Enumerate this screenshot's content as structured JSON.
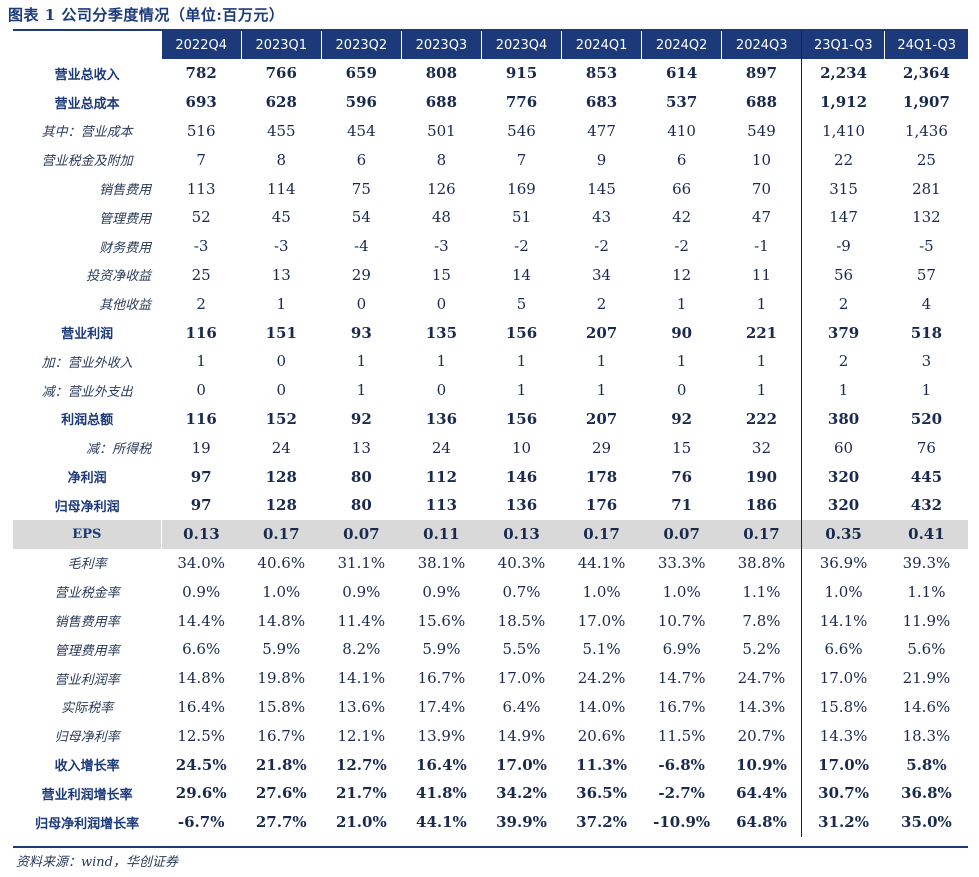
{
  "title": "图表 1    公司分季度情况（单位:百万元）",
  "header": [
    "2022Q4",
    "2023Q1",
    "2023Q2",
    "2023Q3",
    "2023Q4",
    "2024Q1",
    "2024Q2",
    "2024Q3",
    "23Q1-Q3",
    "24Q1-Q3"
  ],
  "rows": [
    {
      "label": "营业总收入",
      "style": "bold",
      "indent": "l1",
      "values": [
        "782",
        "766",
        "659",
        "808",
        "915",
        "853",
        "614",
        "897",
        "2,234",
        "2,364"
      ]
    },
    {
      "label": "营业总成本",
      "style": "bold",
      "indent": "l1",
      "values": [
        "693",
        "628",
        "596",
        "688",
        "776",
        "683",
        "537",
        "688",
        "1,912",
        "1,907"
      ]
    },
    {
      "label": "其中：营业成本",
      "style": "normal",
      "indent": "l1",
      "values": [
        "516",
        "455",
        "454",
        "501",
        "546",
        "477",
        "410",
        "549",
        "1,410",
        "1,436"
      ]
    },
    {
      "label": "营业税金及附加",
      "style": "normal",
      "indent": "l1",
      "values": [
        "7",
        "8",
        "6",
        "8",
        "7",
        "9",
        "6",
        "10",
        "22",
        "25"
      ]
    },
    {
      "label": "销售费用",
      "style": "normal",
      "indent": "l2",
      "values": [
        "113",
        "114",
        "75",
        "126",
        "169",
        "145",
        "66",
        "70",
        "315",
        "281"
      ]
    },
    {
      "label": "管理费用",
      "style": "normal",
      "indent": "l2",
      "values": [
        "52",
        "45",
        "54",
        "48",
        "51",
        "43",
        "42",
        "47",
        "147",
        "132"
      ]
    },
    {
      "label": "财务费用",
      "style": "normal",
      "indent": "l2",
      "values": [
        "-3",
        "-3",
        "-4",
        "-3",
        "-2",
        "-2",
        "-2",
        "-1",
        "-9",
        "-5"
      ]
    },
    {
      "label": "投资净收益",
      "style": "normal",
      "indent": "l2",
      "values": [
        "25",
        "13",
        "29",
        "15",
        "14",
        "34",
        "12",
        "11",
        "56",
        "57"
      ]
    },
    {
      "label": "其他收益",
      "style": "normal",
      "indent": "l2",
      "values": [
        "2",
        "1",
        "0",
        "0",
        "5",
        "2",
        "1",
        "1",
        "2",
        "4"
      ]
    },
    {
      "label": "营业利润",
      "style": "bold",
      "indent": "l1",
      "values": [
        "116",
        "151",
        "93",
        "135",
        "156",
        "207",
        "90",
        "221",
        "379",
        "518"
      ]
    },
    {
      "label": "加：营业外收入",
      "style": "normal",
      "indent": "l1",
      "values": [
        "1",
        "0",
        "1",
        "1",
        "1",
        "1",
        "1",
        "1",
        "2",
        "3"
      ]
    },
    {
      "label": "减：营业外支出",
      "style": "normal",
      "indent": "l1",
      "values": [
        "0",
        "0",
        "1",
        "0",
        "1",
        "1",
        "0",
        "1",
        "1",
        "1"
      ]
    },
    {
      "label": "利润总额",
      "style": "bold",
      "indent": "l1",
      "values": [
        "116",
        "152",
        "92",
        "136",
        "156",
        "207",
        "92",
        "222",
        "380",
        "520"
      ]
    },
    {
      "label": "减：所得税",
      "style": "normal",
      "indent": "l2",
      "values": [
        "19",
        "24",
        "13",
        "24",
        "10",
        "29",
        "15",
        "32",
        "60",
        "76"
      ]
    },
    {
      "label": "净利润",
      "style": "bold",
      "indent": "l1",
      "values": [
        "97",
        "128",
        "80",
        "112",
        "146",
        "178",
        "76",
        "190",
        "320",
        "445"
      ]
    },
    {
      "label": "归母净利润",
      "style": "bold",
      "indent": "l1",
      "values": [
        "97",
        "128",
        "80",
        "113",
        "136",
        "176",
        "71",
        "186",
        "320",
        "432"
      ]
    },
    {
      "label": "EPS",
      "style": "eps",
      "indent": "l1",
      "values": [
        "0.13",
        "0.17",
        "0.07",
        "0.11",
        "0.13",
        "0.17",
        "0.07",
        "0.17",
        "0.35",
        "0.41"
      ]
    },
    {
      "label": "毛利率",
      "style": "normal",
      "indent": "l1",
      "values": [
        "34.0%",
        "40.6%",
        "31.1%",
        "38.1%",
        "40.3%",
        "44.1%",
        "33.3%",
        "38.8%",
        "36.9%",
        "39.3%"
      ]
    },
    {
      "label": "营业税金率",
      "style": "normal",
      "indent": "l1",
      "values": [
        "0.9%",
        "1.0%",
        "0.9%",
        "0.9%",
        "0.7%",
        "1.0%",
        "1.0%",
        "1.1%",
        "1.0%",
        "1.1%"
      ]
    },
    {
      "label": "销售费用率",
      "style": "normal",
      "indent": "l1",
      "values": [
        "14.4%",
        "14.8%",
        "11.4%",
        "15.6%",
        "18.5%",
        "17.0%",
        "10.7%",
        "7.8%",
        "14.1%",
        "11.9%"
      ]
    },
    {
      "label": "管理费用率",
      "style": "normal",
      "indent": "l1",
      "values": [
        "6.6%",
        "5.9%",
        "8.2%",
        "5.9%",
        "5.5%",
        "5.1%",
        "6.9%",
        "5.2%",
        "6.6%",
        "5.6%"
      ]
    },
    {
      "label": "营业利润率",
      "style": "normal",
      "indent": "l1",
      "values": [
        "14.8%",
        "19.8%",
        "14.1%",
        "16.7%",
        "17.0%",
        "24.2%",
        "14.7%",
        "24.7%",
        "17.0%",
        "21.9%"
      ]
    },
    {
      "label": "实际税率",
      "style": "normal",
      "indent": "l1",
      "values": [
        "16.4%",
        "15.8%",
        "13.6%",
        "17.4%",
        "6.4%",
        "14.0%",
        "16.7%",
        "14.3%",
        "15.8%",
        "14.6%"
      ]
    },
    {
      "label": "归母净利率",
      "style": "normal",
      "indent": "l1",
      "values": [
        "12.5%",
        "16.7%",
        "12.1%",
        "13.9%",
        "14.9%",
        "20.6%",
        "11.5%",
        "20.7%",
        "14.3%",
        "18.3%"
      ]
    },
    {
      "label": "收入增长率",
      "style": "bold",
      "indent": "l1",
      "values": [
        "24.5%",
        "21.8%",
        "12.7%",
        "16.4%",
        "17.0%",
        "11.3%",
        "-6.8%",
        "10.9%",
        "17.0%",
        "5.8%"
      ]
    },
    {
      "label": "营业利润增长率",
      "style": "bold",
      "indent": "l1",
      "values": [
        "29.6%",
        "27.6%",
        "21.7%",
        "41.8%",
        "34.2%",
        "36.5%",
        "-2.7%",
        "64.4%",
        "30.7%",
        "36.8%"
      ]
    },
    {
      "label": "归母净利润增长率",
      "style": "bold",
      "indent": "l1",
      "values": [
        "-6.7%",
        "27.7%",
        "21.0%",
        "44.1%",
        "39.9%",
        "37.2%",
        "-10.9%",
        "64.8%",
        "31.2%",
        "35.0%"
      ]
    }
  ],
  "source": "资料来源：wind，华创证券"
}
